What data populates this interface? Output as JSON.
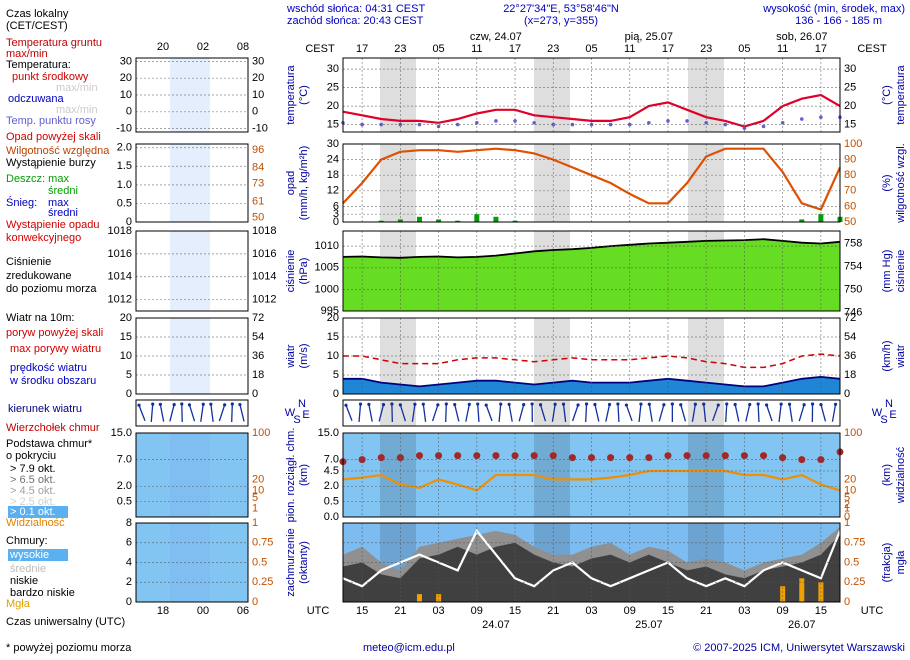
{
  "header": {
    "sunrise": "wschód słońca: 04:31 CEST",
    "sunset": "zachód słońca: 20:43 CEST",
    "coords": "22°27'34\"E, 53°58'46\"N",
    "grid_point": "(x=273, y=355)",
    "elevation_label": "wysokość (min, środek, max)",
    "elevation": "136 - 166 - 185 m",
    "local_zone": "CEST",
    "utc_zone": "UTC",
    "local_ticks": [
      {
        "value": 15,
        "label": "17"
      },
      {
        "value": 21,
        "label": "23"
      },
      {
        "value": 27,
        "label": "05"
      },
      {
        "value": 33,
        "label": "11"
      },
      {
        "value": 39,
        "label": "17"
      },
      {
        "value": 45,
        "label": "23"
      },
      {
        "value": 51,
        "label": "05"
      },
      {
        "value": 57,
        "label": "11"
      },
      {
        "value": 63,
        "label": "17"
      },
      {
        "value": 69,
        "label": "23"
      },
      {
        "value": 75,
        "label": "05"
      },
      {
        "value": 81,
        "label": "11"
      },
      {
        "value": 87,
        "label": "17"
      }
    ],
    "dates": [
      {
        "value": 36,
        "label": "czw, 24.07"
      },
      {
        "value": 60,
        "label": "pią, 25.07"
      },
      {
        "value": 84,
        "label": "sob, 26.07"
      }
    ],
    "compass": [
      "N",
      "W",
      "E",
      "S"
    ]
  },
  "legend": {
    "items": [
      "Czas lokalny",
      "(CET/CEST)",
      "Temperatura gruntu",
      "max/min",
      "Temperatura:",
      "max/min",
      "odczuwana",
      "max/min",
      "Opad powyżej skali",
      "Wystąpienie burzy",
      "średni",
      "Śnieg:",
      "max",
      "średni",
      "Wystąpienie opadu",
      "konwekcyjnego",
      "zredukowane",
      "do poziomu morza",
      "Wiatr na 10m:",
      "poryw powyżej skali",
      "w środku obszaru",
      "kierunek wiatru",
      "Wierzchołek chmur",
      "o pokryciu",
      "> 7.9 okt.",
      "> 6.5 okt.",
      "> 4.5 okt.",
      "> 2.5 okt.",
      "> 0.1 okt.",
      "Chmury:",
      "bardzo niskie",
      "Czas uniwersalny (UTC)",
      "* powyżej poziomu morza"
    ],
    "mini_top": [
      "20",
      "02",
      "08"
    ],
    "mini_bottom": [
      "18",
      "00",
      "06"
    ],
    "mini": [
      {
        "ylim": [
          -12,
          32
        ],
        "yticks": [
          -10,
          0,
          10,
          20,
          30
        ],
        "y2lim": [
          -12,
          32
        ],
        "y2ticks": [
          -10,
          0,
          10,
          20,
          30
        ]
      },
      {
        "ylim": [
          0,
          2.1
        ],
        "yticks": [
          0,
          0.5,
          {
            "value": 1,
            "label": "1.0"
          },
          1.5,
          {
            "value": 2,
            "label": "2.0"
          }
        ],
        "y2lim": [
          47,
          100
        ],
        "y2ticks": [
          50,
          61,
          73,
          84,
          96
        ]
      },
      {
        "ylim": [
          1011,
          1018
        ],
        "yticks": [
          1012,
          1014,
          1016,
          1018
        ],
        "y2lim": [
          1011,
          1018
        ],
        "y2ticks": [
          1012,
          1014,
          1016,
          1018
        ]
      },
      {
        "ylim": [
          0,
          20
        ],
        "yticks": [
          0,
          5,
          10,
          15,
          20
        ],
        "y2lim": [
          0,
          72
        ],
        "y2ticks": [
          0,
          18,
          36,
          54,
          72
        ]
      },
      {
        "ylim": [
          0,
          15
        ],
        "yscale": "sqrt",
        "yticks": [
          0.5,
          {
            "value": 2,
            "label": "2.0"
          },
          {
            "value": 7,
            "label": "7.0"
          },
          {
            "value": 15,
            "label": "15.0"
          }
        ],
        "y2lim": [
          0,
          100
        ],
        "y2scale": "sqrt",
        "y2ticks": [
          1,
          5,
          10,
          20,
          100
        ]
      },
      {
        "ylim": [
          0,
          8
        ],
        "yticks": [
          0,
          2,
          4,
          6,
          8
        ],
        "y2lim": [
          0,
          1
        ],
        "y2ticks": [
          0,
          0.25,
          0.5,
          0.75,
          1
        ]
      }
    ]
  },
  "chart_data": [
    {
      "type": "line",
      "ylabel": [
        "temperatura",
        "(°C)"
      ],
      "y2label": [
        "(°C)",
        "temperatura"
      ],
      "x": [
        12,
        15,
        18,
        21,
        24,
        27,
        30,
        33,
        36,
        39,
        42,
        45,
        48,
        51,
        54,
        57,
        60,
        63,
        66,
        69,
        72,
        75,
        78,
        81,
        84,
        87,
        90
      ],
      "xlim": [
        12,
        90
      ],
      "ylim": [
        13,
        33
      ],
      "yticks": [
        15,
        20,
        25,
        30
      ],
      "y2lim": [
        13,
        33
      ],
      "y2ticks": [
        15,
        20,
        25,
        30
      ],
      "grid": true,
      "series": [
        {
          "name": "punkt środkowy",
          "color": "#e0002a",
          "style": "line",
          "values": [
            18.5,
            17.5,
            16.5,
            16,
            16,
            15.5,
            16.5,
            18,
            19,
            19,
            17.5,
            17,
            16.5,
            16,
            16,
            17,
            20,
            21,
            19,
            17,
            16,
            14.5,
            16,
            20,
            22,
            23,
            20
          ]
        },
        {
          "name": "Temp. punktu rosy",
          "color": "#6060e0",
          "style": "dots",
          "values": [
            15.5,
            15,
            15,
            15,
            15,
            14.5,
            15,
            15.5,
            16,
            16,
            15.5,
            15,
            15,
            15,
            15,
            15,
            15.5,
            16,
            16,
            15.5,
            15,
            14,
            14.5,
            15.5,
            16.5,
            17,
            17
          ]
        }
      ]
    },
    {
      "type": "bar",
      "ylabel": [
        "opad",
        "(mm/h, kg/m²h)"
      ],
      "y2label": [
        "(%)",
        "wilgotność wzgl."
      ],
      "x": [
        12,
        15,
        18,
        21,
        24,
        27,
        30,
        33,
        36,
        39,
        42,
        45,
        48,
        51,
        54,
        57,
        60,
        63,
        66,
        69,
        72,
        75,
        78,
        81,
        84,
        87,
        90
      ],
      "xlim": [
        12,
        90
      ],
      "ylim": [
        0,
        30
      ],
      "yticks": [
        0,
        3,
        6,
        12,
        18,
        24,
        30
      ],
      "y2lim": [
        50,
        100
      ],
      "y2ticks": [
        50,
        60,
        70,
        80,
        90,
        100
      ],
      "y2color": "#c05000",
      "grid": true,
      "series": [
        {
          "name": "Deszcz: max",
          "color": "#00a000",
          "style": "bar",
          "values": [
            0,
            0,
            0.5,
            1,
            2,
            1,
            0.5,
            3,
            2,
            0.5,
            0,
            0,
            0,
            0,
            0,
            0,
            0,
            0,
            0,
            0,
            0,
            0,
            0,
            0,
            1,
            3,
            2
          ]
        },
        {
          "name": "Wilgotność względna",
          "color": "#e05000",
          "style": "line",
          "axis": "y2",
          "values": [
            62,
            75,
            90,
            95,
            96,
            96,
            95,
            96,
            97,
            96,
            94,
            90,
            85,
            80,
            75,
            68,
            62,
            62,
            75,
            92,
            97,
            97,
            97,
            82,
            62,
            58,
            85
          ]
        }
      ]
    },
    {
      "type": "area",
      "ylabel": [
        "ciśnienie",
        "(hPa)"
      ],
      "y2label": [
        "(mm Hg)",
        "ciśnienie"
      ],
      "x": [
        12,
        15,
        18,
        21,
        24,
        27,
        30,
        33,
        36,
        39,
        42,
        45,
        48,
        51,
        54,
        57,
        60,
        63,
        66,
        69,
        72,
        75,
        78,
        81,
        84,
        87,
        90
      ],
      "xlim": [
        12,
        90
      ],
      "ylim": [
        995,
        1013.5
      ],
      "yticks": [
        995,
        1000,
        1005,
        1010
      ],
      "y2lim": [
        746.3,
        760.2
      ],
      "y2ticks": [
        746,
        750,
        754,
        758
      ],
      "grid": true,
      "series": [
        {
          "name": "Ciśnienie",
          "color": "#66dd22",
          "style": "area",
          "values": [
            1007.5,
            1007.6,
            1007.4,
            1007.3,
            1007.5,
            1007.6,
            1007.4,
            1007.5,
            1007.8,
            1008.3,
            1008.8,
            1009.1,
            1009.3,
            1009.6,
            1010,
            1010.3,
            1010.6,
            1010.8,
            1011,
            1011.2,
            1011.3,
            1011.4,
            1011.6,
            1011.2,
            1010.8,
            1010.6,
            1011
          ]
        }
      ]
    },
    {
      "type": "line",
      "ylabel": [
        "wiatr",
        "(m/s)"
      ],
      "y2label": [
        "(km/h)",
        "wiatr"
      ],
      "x": [
        12,
        15,
        18,
        21,
        24,
        27,
        30,
        33,
        36,
        39,
        42,
        45,
        48,
        51,
        54,
        57,
        60,
        63,
        66,
        69,
        72,
        75,
        78,
        81,
        84,
        87,
        90
      ],
      "xlim": [
        12,
        90
      ],
      "ylim": [
        0,
        20
      ],
      "yticks": [
        0,
        5,
        10,
        15,
        20
      ],
      "y2lim": [
        0,
        72
      ],
      "y2ticks": [
        0,
        18,
        36,
        54,
        72
      ],
      "grid": true,
      "series": [
        {
          "name": "max porywy wiatru",
          "color": "#d00000",
          "style": "dashed",
          "values": [
            10,
            10,
            9,
            8,
            8,
            8,
            9,
            9.5,
            9.5,
            9,
            8.5,
            9,
            9.5,
            9,
            9,
            9,
            9.5,
            10,
            9.5,
            8.5,
            8,
            7,
            7,
            8,
            10,
            10.5,
            10
          ]
        },
        {
          "name": "prędkość wiatru",
          "color": "#1f86d6",
          "style": "area",
          "values": [
            4,
            4,
            3,
            2.5,
            2,
            2.5,
            3,
            3.5,
            3.5,
            3,
            2.5,
            3,
            3.5,
            3,
            3,
            3,
            3.5,
            4,
            3.5,
            3,
            2.5,
            2,
            2,
            3,
            4,
            4.5,
            4
          ]
        }
      ]
    },
    {
      "type": "scatter",
      "ylabel": [
        "pion. rozciągł. chm.",
        "(km)"
      ],
      "y2label": [
        "(km)",
        "widzialność"
      ],
      "x": [
        12,
        15,
        18,
        21,
        24,
        27,
        30,
        33,
        36,
        39,
        42,
        45,
        48,
        51,
        54,
        57,
        60,
        63,
        66,
        69,
        72,
        75,
        78,
        81,
        84,
        87,
        90
      ],
      "xlim": [
        12,
        90
      ],
      "ylim": [
        0,
        15
      ],
      "yscale": "sqrt",
      "yticks": [
        {
          "value": 0,
          "label": "0.0"
        },
        0.5,
        {
          "value": 2,
          "label": "2.0"
        },
        4.5,
        {
          "value": 7,
          "label": "7.0"
        },
        {
          "value": 15,
          "label": "15.0"
        }
      ],
      "y2lim": [
        0,
        100
      ],
      "y2scale": "sqrt",
      "y2ticks": [
        0,
        1,
        2,
        5,
        10,
        20,
        100
      ],
      "y2color": "#c05000",
      "grid": true,
      "background": "#82c4f2",
      "series": [
        {
          "name": "Podstawa chmur*",
          "color": "#a02828",
          "style": "dots",
          "values": [
            6.5,
            7,
            7.5,
            7.5,
            8,
            8,
            8,
            8,
            8,
            8,
            8,
            8,
            7.5,
            7.5,
            7.5,
            7.5,
            7.5,
            8,
            8,
            8,
            8,
            8,
            8,
            7.5,
            7,
            7,
            9
          ]
        },
        {
          "name": "Widzialność",
          "color": "#f09000",
          "style": "line",
          "axis": "y2",
          "values": [
            20,
            22,
            25,
            15,
            12,
            20,
            15,
            10,
            25,
            25,
            25,
            20,
            20,
            20,
            22,
            25,
            30,
            30,
            30,
            30,
            30,
            25,
            25,
            20,
            25,
            15,
            10
          ]
        }
      ]
    },
    {
      "type": "area",
      "ylabel": [
        "zachmurzenie",
        "(oktanty)"
      ],
      "y2label": [
        "(frakcja)",
        "mgła"
      ],
      "x": [
        12,
        15,
        18,
        21,
        24,
        27,
        30,
        33,
        36,
        39,
        42,
        45,
        48,
        51,
        54,
        57,
        60,
        63,
        66,
        69,
        72,
        75,
        78,
        81,
        84,
        87,
        90
      ],
      "xlim": [
        12,
        90
      ],
      "xticks": [
        {
          "value": 15,
          "label": "15"
        },
        {
          "value": 21,
          "label": "21"
        },
        {
          "value": 27,
          "label": "03"
        },
        {
          "value": 33,
          "label": "09"
        },
        {
          "value": 39,
          "label": "15"
        },
        {
          "value": 45,
          "label": "21"
        },
        {
          "value": 51,
          "label": "03"
        },
        {
          "value": 57,
          "label": "09"
        },
        {
          "value": 63,
          "label": "15"
        },
        {
          "value": 69,
          "label": "21"
        },
        {
          "value": 75,
          "label": "03"
        },
        {
          "value": 81,
          "label": "09"
        },
        {
          "value": 87,
          "label": "15"
        }
      ],
      "x_dates": [
        {
          "value": 36,
          "label": "24.07"
        },
        {
          "value": 60,
          "label": "25.07"
        },
        {
          "value": 84,
          "label": "26.07"
        }
      ],
      "y2lim": [
        0,
        1
      ],
      "y2ticks": [
        0,
        0.25,
        0.5,
        0.75,
        1
      ],
      "y2color": "#c05000",
      "grid": true,
      "background": "#7cbcf0",
      "series": [
        {
          "name": "średnie",
          "color": "#909090",
          "style": "area",
          "axis": "y2",
          "values": [
            0.6,
            0.7,
            0.5,
            0.4,
            0.7,
            0.75,
            0.8,
            0.85,
            0.9,
            0.85,
            0.7,
            0.6,
            0.6,
            0.7,
            0.75,
            0.6,
            0.7,
            0.65,
            0.5,
            0.55,
            0.5,
            0.4,
            0.5,
            0.55,
            0.6,
            0.75,
            0.95
          ]
        },
        {
          "name": "niskie",
          "color": "#404040",
          "style": "area",
          "axis": "y2",
          "values": [
            0.45,
            0.5,
            0.35,
            0.3,
            0.55,
            0.6,
            0.7,
            0.6,
            0.7,
            0.75,
            0.6,
            0.5,
            0.45,
            0.55,
            0.6,
            0.5,
            0.6,
            0.5,
            0.4,
            0.45,
            0.35,
            0.3,
            0.4,
            0.45,
            0.5,
            0.6,
            0.85
          ]
        },
        {
          "name": "wysokie",
          "color": "#ffffff",
          "style": "line",
          "axis": "y2",
          "values": [
            0.3,
            0.2,
            0.4,
            0.5,
            0.6,
            0.5,
            0.4,
            0.9,
            0.6,
            0.3,
            0.2,
            0.4,
            0.5,
            0.3,
            0.2,
            0.3,
            0.4,
            0.5,
            0.3,
            0.2,
            0.3,
            0.2,
            0.4,
            0.5,
            0.4,
            0.3,
            0.9
          ]
        },
        {
          "name": "Mgła",
          "color": "#f0a000",
          "style": "bar",
          "axis": "y2",
          "values": [
            0,
            0,
            0,
            0,
            0.1,
            0.1,
            0,
            0,
            0,
            0,
            0,
            0,
            0,
            0,
            0,
            0,
            0,
            0,
            0,
            0,
            0,
            0,
            0,
            0.2,
            0.3,
            0.25,
            0
          ]
        }
      ]
    }
  ],
  "footer": {
    "email": "meteo@icm.edu.pl",
    "copyright": "© 2007-2025 ICM, Uniwersytet Warszawski"
  }
}
